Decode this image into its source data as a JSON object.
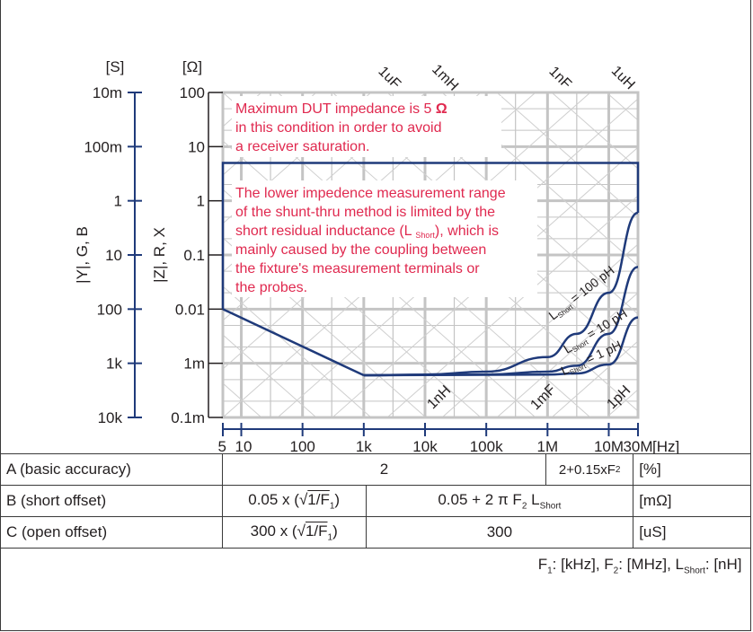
{
  "chart_data": {
    "type": "line",
    "title": "",
    "xlabel": "[Hz]",
    "xscale": "log",
    "xlim": [
      5,
      30000000
    ],
    "x_ticks": [
      5,
      10,
      100,
      1000,
      10000,
      100000,
      1000000,
      10000000,
      30000000
    ],
    "x_tick_labels": [
      "5",
      "10",
      "100",
      "1k",
      "10k",
      "100k",
      "1M",
      "10M",
      "30M"
    ],
    "y_left_outer": {
      "label": "|Y|, G, B",
      "unit": "[S]",
      "tick_labels": [
        "10m",
        "100m",
        "1",
        "10",
        "100",
        "1k",
        "10k"
      ],
      "color": "#1f3a7a"
    },
    "y_left_inner": {
      "label": "|Z|, R, X",
      "unit": "[Ω]",
      "scale": "log",
      "ylim": [
        0.0001,
        100
      ],
      "ticks": [
        100,
        10,
        1,
        0.1,
        0.01,
        0.001,
        0.0001
      ],
      "tick_labels": [
        "100",
        "10",
        "1",
        "0.1",
        "0.01",
        "1m",
        "0.1m"
      ]
    },
    "grid": true,
    "reactance_lines": {
      "top_labels": [
        "1uF",
        "1mH",
        "1nF",
        "1uH"
      ],
      "bottom_labels": [
        "1nH",
        "1mF",
        "1pH"
      ]
    },
    "series": [
      {
        "name": "L Short = 100 pH",
        "color": "#1f3a7a",
        "points": [
          [
            1000,
            0.0006
          ],
          [
            10000,
            0.00062
          ],
          [
            100000,
            0.0007
          ],
          [
            1000000,
            0.0013
          ],
          [
            3000000,
            0.0035
          ],
          [
            10000000,
            0.02
          ],
          [
            30000000,
            0.6
          ]
        ]
      },
      {
        "name": "L Short = 10 pH",
        "color": "#1f3a7a",
        "points": [
          [
            1000,
            0.0006
          ],
          [
            100000,
            0.00062
          ],
          [
            1000000,
            0.0007
          ],
          [
            3000000,
            0.0009
          ],
          [
            10000000,
            0.0035
          ],
          [
            30000000,
            0.06
          ]
        ]
      },
      {
        "name": "L Short = 1 pH",
        "color": "#1f3a7a",
        "points": [
          [
            1000,
            0.0006
          ],
          [
            1000000,
            0.00062
          ],
          [
            3000000,
            0.00065
          ],
          [
            10000000,
            0.00095
          ],
          [
            30000000,
            0.007
          ]
        ]
      }
    ],
    "measurement_range": {
      "color": "#1f3a7a",
      "upper_limit_ohm": 5,
      "lower_boundary": [
        [
          5,
          0.01
        ],
        [
          1000,
          0.0006
        ]
      ]
    },
    "annotations": [
      {
        "text_parts": [
          "Maximum DUT impedance is 5 ",
          "Ω"
        ],
        "lines": [
          "in this condition in order to avoid",
          "a receiver saturation."
        ]
      },
      {
        "lines": [
          "The lower impedence measurement range",
          "of the shunt-thru method is limited by the"
        ],
        "line3_pre": "short residual inductance (L ",
        "line3_sub": "Short",
        "line3_post": "), which is",
        "lines_after": [
          "mainly caused by the coupling between",
          "the fixture's measurement terminals or",
          "the probes."
        ]
      }
    ],
    "annotation_color": "#e0294f",
    "series_label_L": "L",
    "series_label_sub": "Short",
    "series_label_values": [
      "= 100 pH",
      "= 10 pH",
      "= 1 pH"
    ]
  },
  "table": {
    "row_a": {
      "label": "A (basic accuracy)",
      "value": "2",
      "value2_pre": "2+0.15xF",
      "value2_sub": "2",
      "unit": "[%]"
    },
    "row_b": {
      "label": "B (short offset)",
      "v1_pre": "0.05 x (",
      "v1_root": "1/F",
      "v1_sub": "1",
      "v1_post": ")",
      "v2_pre": "0.05 + 2 π F",
      "v2_sub": "2",
      "v2_mid": " L",
      "v2_sub2": "Short",
      "unit": "[mΩ]"
    },
    "row_c": {
      "label": "C (open offset)",
      "v1_pre": "300 x (",
      "v1_root": "1/F",
      "v1_sub": "1",
      "v1_post": ")",
      "v2": "300",
      "unit": "[uS]"
    },
    "note": {
      "p1": "F",
      "s1": "1",
      "p2": ": [kHz], F",
      "s2": "2",
      "p3": ": [MHz], L",
      "s3": "Short",
      "p4": ": [nH]"
    }
  }
}
